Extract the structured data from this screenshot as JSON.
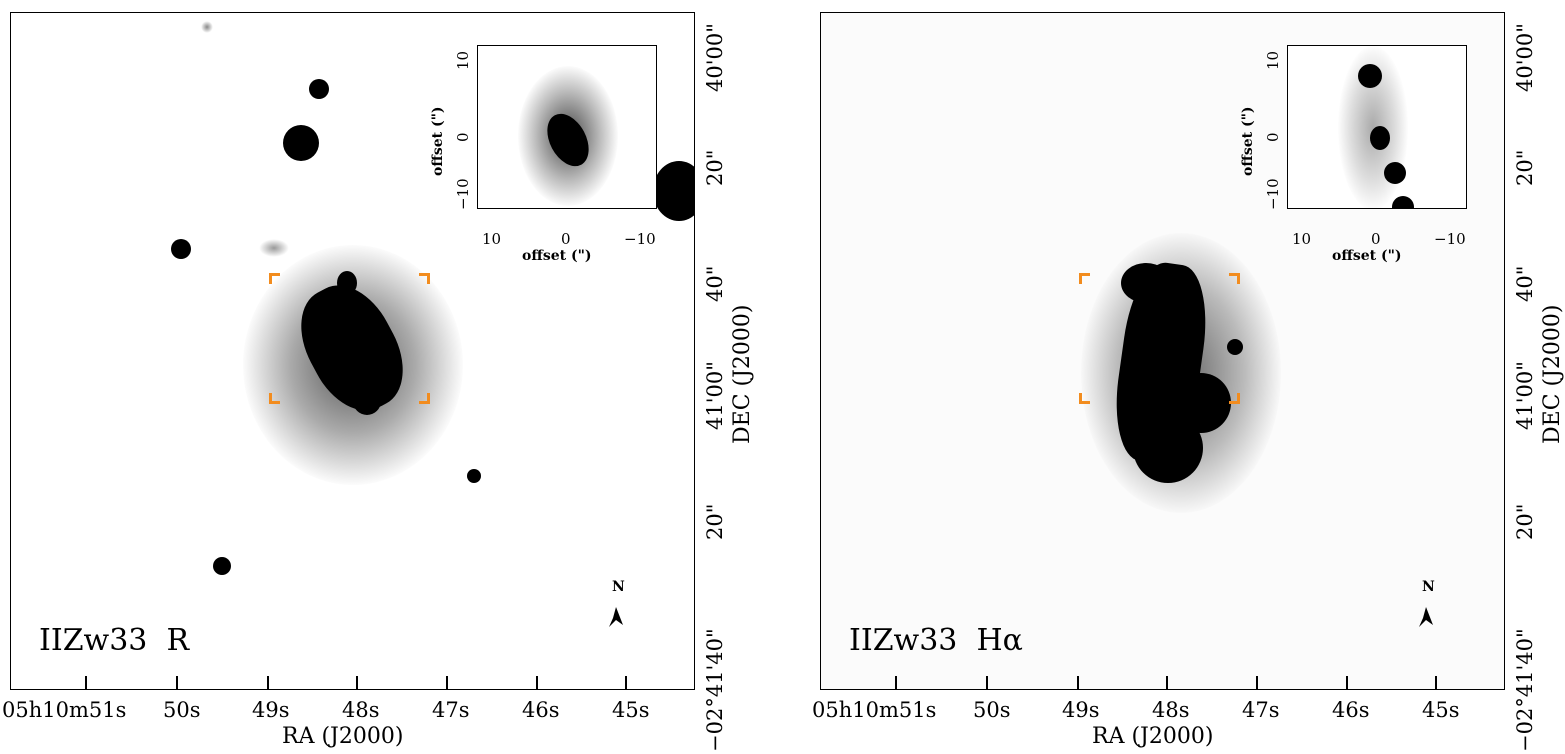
{
  "panels": [
    {
      "name": "R",
      "label_main": "IIZw33",
      "label_filter": "R",
      "xlabel": "RA (J2000)",
      "ylabel": "DEC (J2000)",
      "x_ticks": [
        "05h10m51s",
        "50s",
        "49s",
        "48s",
        "47s",
        "46s",
        "45s"
      ],
      "y_ticks": [
        "40'00\"",
        "20\"",
        "40\"",
        "41'00\"",
        "20\"",
        "−02°41'40\""
      ],
      "inset_xlabel": "offset (\")",
      "inset_ylabel": "offset (\")",
      "inset_x_ticks": [
        "10",
        "0",
        "−10"
      ],
      "inset_y_ticks": [
        "10",
        "0",
        "−10"
      ],
      "north": "N"
    },
    {
      "name": "Halpha",
      "label_main": "IIZw33",
      "label_filter": "Hα",
      "xlabel": "RA (J2000)",
      "ylabel": "DEC (J2000)",
      "x_ticks": [
        "05h10m51s",
        "50s",
        "49s",
        "48s",
        "47s",
        "46s",
        "45s"
      ],
      "y_ticks": [
        "40'00\"",
        "20\"",
        "40\"",
        "41'00\"",
        "20\"",
        "−02°41'40\""
      ],
      "inset_xlabel": "offset (\")",
      "inset_ylabel": "offset (\")",
      "inset_x_ticks": [
        "10",
        "0",
        "−10"
      ],
      "inset_y_ticks": [
        "10",
        "0",
        "−10"
      ],
      "north": "N"
    }
  ],
  "colors": {
    "bracket": "#f28c1e",
    "ink": "#000000"
  }
}
